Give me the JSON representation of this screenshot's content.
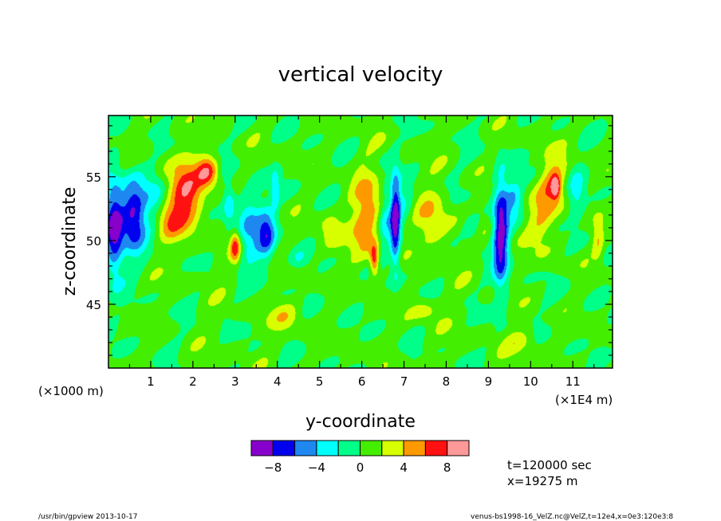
{
  "chart_data": {
    "type": "heatmap",
    "title": "vertical velocity",
    "xlabel": "y-coordinate",
    "ylabel": "z-coordinate",
    "x_unit_left": "(×1000 m)",
    "x_unit_right": "(×1E4 m)",
    "xlim": [
      0,
      11.94
    ],
    "ylim": [
      40,
      59.8
    ],
    "x_ticks": [
      1,
      2,
      3,
      4,
      5,
      6,
      7,
      8,
      9,
      10,
      11
    ],
    "y_ticks": [
      45,
      50,
      55
    ],
    "background_value": 0.5,
    "contour_levels": [
      -10,
      -8,
      -6,
      -4,
      -2,
      0,
      2,
      4,
      6,
      8,
      10
    ],
    "colors": [
      "#8800cc",
      "#0000ee",
      "#1e88f0",
      "#00ffff",
      "#00ff88",
      "#44ee00",
      "#d8ff00",
      "#ff9900",
      "#ff1111",
      "#ff9999"
    ],
    "colorbar_ticks": [
      -8,
      -4,
      0,
      4,
      8
    ],
    "features": [
      {
        "y": 0.12,
        "z": 51,
        "ry": 0.22,
        "rz": 3.5,
        "w": -10
      },
      {
        "y": 0.58,
        "z": 52,
        "ry": 0.3,
        "rz": 2.8,
        "w": -9
      },
      {
        "y": 1.1,
        "z": 53.5,
        "ry": 0.3,
        "rz": 2,
        "w": -2.8
      },
      {
        "y": 1.8,
        "z": 53.5,
        "ry": 0.45,
        "rz": 2.8,
        "w": 7
      },
      {
        "y": 1.4,
        "z": 51.5,
        "ry": 0.3,
        "rz": 1.4,
        "w": 3
      },
      {
        "y": 2.35,
        "z": 55.4,
        "ry": 0.25,
        "rz": 1.2,
        "w": 6.5
      },
      {
        "y": 2.85,
        "z": 53,
        "ry": 0.15,
        "rz": 1.6,
        "w": -4
      },
      {
        "y": 3.0,
        "z": 49.5,
        "ry": 0.12,
        "rz": 1.2,
        "w": 6.5
      },
      {
        "y": 3.35,
        "z": 51,
        "ry": 0.3,
        "rz": 2.8,
        "w": -5
      },
      {
        "y": 3.75,
        "z": 50.5,
        "ry": 0.2,
        "rz": 2,
        "w": -6
      },
      {
        "y": 3.95,
        "z": 54,
        "ry": 0.1,
        "rz": 1.5,
        "w": -4
      },
      {
        "y": 4.5,
        "z": 48.5,
        "ry": 0.25,
        "rz": 0.8,
        "w": -2.5
      },
      {
        "y": 5.3,
        "z": 50.5,
        "ry": 0.35,
        "rz": 1.8,
        "w": 2.5
      },
      {
        "y": 6.1,
        "z": 52,
        "ry": 0.35,
        "rz": 3.5,
        "w": 4.8
      },
      {
        "y": 6.3,
        "z": 48.5,
        "ry": 0.1,
        "rz": 1.2,
        "w": 6.5
      },
      {
        "y": 6.55,
        "z": 51.5,
        "ry": 0.15,
        "rz": 3,
        "w": -3
      },
      {
        "y": 6.8,
        "z": 51.5,
        "ry": 0.12,
        "rz": 3.6,
        "w": -9.5
      },
      {
        "y": 7.05,
        "z": 53,
        "ry": 0.2,
        "rz": 1.5,
        "w": -2.5
      },
      {
        "y": 7.7,
        "z": 51.5,
        "ry": 0.4,
        "rz": 2.6,
        "w": 3.5
      },
      {
        "y": 8.6,
        "z": 51,
        "ry": 0.2,
        "rz": 1,
        "w": -2.5
      },
      {
        "y": 9.3,
        "z": 50.5,
        "ry": 0.18,
        "rz": 4.2,
        "w": -9.5
      },
      {
        "y": 9.6,
        "z": 53.5,
        "ry": 0.2,
        "rz": 1.6,
        "w": -4
      },
      {
        "y": 10.25,
        "z": 51.5,
        "ry": 0.35,
        "rz": 2.2,
        "w": 3
      },
      {
        "y": 10.55,
        "z": 54.5,
        "ry": 0.32,
        "rz": 2.2,
        "w": 4.5
      },
      {
        "y": 10.6,
        "z": 54.2,
        "ry": 0.1,
        "rz": 0.8,
        "w": 6.5
      },
      {
        "y": 11.1,
        "z": 53.5,
        "ry": 0.2,
        "rz": 2,
        "w": -3
      },
      {
        "y": 11.6,
        "z": 50,
        "ry": 0.12,
        "rz": 1.5,
        "w": 3
      },
      {
        "y": 4.2,
        "z": 44,
        "ry": 0.4,
        "rz": 1.2,
        "w": 2.5
      },
      {
        "y": 7.5,
        "z": 44.5,
        "ry": 0.35,
        "rz": 1,
        "w": 2.5
      },
      {
        "y": 9.8,
        "z": 42,
        "ry": 0.4,
        "rz": 1,
        "w": 2.5
      }
    ]
  },
  "info": {
    "time": "t=120000 sec",
    "position": "x=19275 m"
  },
  "footer": {
    "left": "/usr/bin/gpview   2013-10-17",
    "right": "venus-bs1998-16_VelZ.nc@VelZ,t=12e4,x=0e3:120e3:8"
  }
}
